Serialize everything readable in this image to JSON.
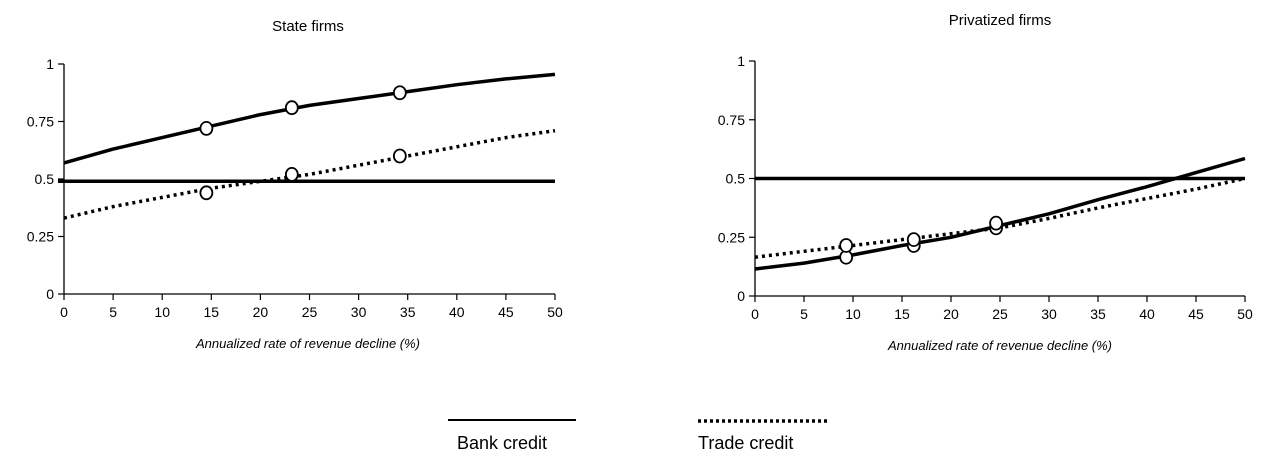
{
  "chart_data": [
    {
      "type": "line",
      "title": "State firms",
      "xlabel": "Annualized rate of revenue decline (%)",
      "ylabel": "",
      "xlim": [
        0,
        50
      ],
      "ylim": [
        0,
        1
      ],
      "xticks": [
        0,
        5,
        10,
        15,
        20,
        25,
        30,
        35,
        40,
        45,
        50
      ],
      "yticks": [
        0,
        0.25,
        0.5,
        0.75,
        1
      ],
      "ytick_labels": [
        "0",
        "0.25",
        "0.5",
        "0.75",
        "1"
      ],
      "reference_line": 0.49,
      "series": [
        {
          "name": "Bank credit",
          "style": "solid",
          "x": [
            0,
            5,
            10,
            15,
            20,
            25,
            30,
            35,
            40,
            45,
            50
          ],
          "values": [
            0.57,
            0.63,
            0.68,
            0.73,
            0.78,
            0.82,
            0.85,
            0.88,
            0.91,
            0.935,
            0.955
          ],
          "markers": [
            [
              14.5,
              0.72
            ],
            [
              23.2,
              0.81
            ],
            [
              34.2,
              0.875
            ]
          ]
        },
        {
          "name": "Trade credit",
          "style": "dotted",
          "x": [
            0,
            5,
            10,
            15,
            20,
            25,
            30,
            35,
            40,
            45,
            50
          ],
          "values": [
            0.33,
            0.38,
            0.42,
            0.46,
            0.49,
            0.52,
            0.56,
            0.6,
            0.64,
            0.68,
            0.71
          ],
          "markers": [
            [
              14.5,
              0.44
            ],
            [
              23.2,
              0.52
            ],
            [
              34.2,
              0.6
            ]
          ]
        }
      ]
    },
    {
      "type": "line",
      "title": "Privatized firms",
      "xlabel": "Annualized rate of revenue decline (%)",
      "ylabel": "",
      "xlim": [
        0,
        50
      ],
      "ylim": [
        0,
        1
      ],
      "xticks": [
        0,
        5,
        10,
        15,
        20,
        25,
        30,
        35,
        40,
        45,
        50
      ],
      "yticks": [
        0,
        0.25,
        0.5,
        0.75,
        1
      ],
      "ytick_labels": [
        "0",
        "0.25",
        "0.5",
        "0.75",
        "1"
      ],
      "reference_line": 0.5,
      "series": [
        {
          "name": "Bank credit",
          "style": "solid",
          "x": [
            0,
            5,
            10,
            15,
            20,
            25,
            30,
            35,
            40,
            45,
            50
          ],
          "values": [
            0.115,
            0.14,
            0.175,
            0.215,
            0.25,
            0.3,
            0.35,
            0.41,
            0.465,
            0.525,
            0.585
          ],
          "markers": [
            [
              9.3,
              0.165
            ],
            [
              16.2,
              0.215
            ],
            [
              24.6,
              0.29
            ]
          ]
        },
        {
          "name": "Trade credit",
          "style": "dotted",
          "x": [
            0,
            5,
            10,
            15,
            20,
            25,
            30,
            35,
            40,
            45,
            50
          ],
          "values": [
            0.165,
            0.19,
            0.215,
            0.24,
            0.265,
            0.29,
            0.33,
            0.375,
            0.415,
            0.455,
            0.5
          ],
          "markers": [
            [
              9.3,
              0.215
            ],
            [
              16.2,
              0.24
            ],
            [
              24.6,
              0.31
            ]
          ]
        }
      ]
    }
  ],
  "legend": [
    {
      "label": "Bank credit",
      "style": "solid"
    },
    {
      "label": "Trade credit",
      "style": "dotted"
    }
  ]
}
